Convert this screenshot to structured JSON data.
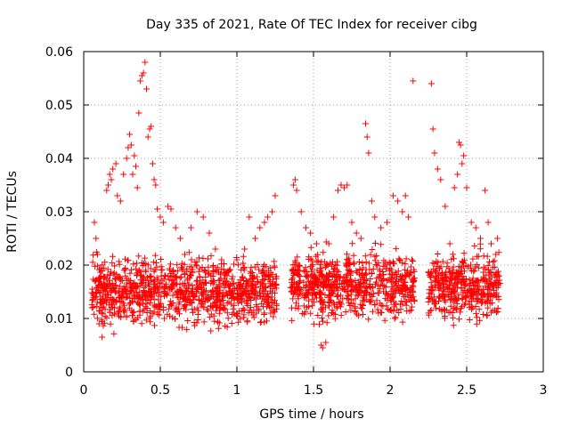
{
  "chart_data": {
    "type": "scatter",
    "title": "Day 335 of 2021, Rate Of TEC Index for receiver cibg",
    "xlabel": "GPS time / hours",
    "ylabel": "ROTI / TECUs",
    "xlim": [
      0,
      3
    ],
    "ylim": [
      0,
      0.06
    ],
    "xticks": [
      0,
      0.5,
      1,
      1.5,
      2,
      2.5,
      3
    ],
    "xtick_labels": [
      "0",
      "0.5",
      "1",
      "1.5",
      "2",
      "2.5",
      "3"
    ],
    "yticks": [
      0,
      0.01,
      0.02,
      0.03,
      0.04,
      0.05,
      0.06
    ],
    "ytick_labels": [
      "0",
      "0.01",
      "0.02",
      "0.03",
      "0.04",
      "0.05",
      "0.06"
    ],
    "grid": true,
    "marker": "+",
    "color": "#ff0000",
    "series": [
      {
        "name": "ROTI",
        "points": [
          [
            0.07,
            0.028
          ],
          [
            0.08,
            0.025
          ],
          [
            0.09,
            0.022
          ],
          [
            0.1,
            0.009
          ],
          [
            0.12,
            0.0065
          ],
          [
            0.13,
            0.016
          ],
          [
            0.15,
            0.034
          ],
          [
            0.16,
            0.035
          ],
          [
            0.17,
            0.037
          ],
          [
            0.18,
            0.036
          ],
          [
            0.19,
            0.038
          ],
          [
            0.21,
            0.039
          ],
          [
            0.22,
            0.033
          ],
          [
            0.24,
            0.032
          ],
          [
            0.26,
            0.037
          ],
          [
            0.28,
            0.04
          ],
          [
            0.29,
            0.042
          ],
          [
            0.3,
            0.0445
          ],
          [
            0.31,
            0.0425
          ],
          [
            0.32,
            0.037
          ],
          [
            0.33,
            0.0405
          ],
          [
            0.34,
            0.0385
          ],
          [
            0.35,
            0.0345
          ],
          [
            0.36,
            0.0485
          ],
          [
            0.37,
            0.0545
          ],
          [
            0.38,
            0.0555
          ],
          [
            0.39,
            0.056
          ],
          [
            0.4,
            0.058
          ],
          [
            0.41,
            0.053
          ],
          [
            0.42,
            0.044
          ],
          [
            0.43,
            0.0455
          ],
          [
            0.44,
            0.046
          ],
          [
            0.45,
            0.039
          ],
          [
            0.46,
            0.036
          ],
          [
            0.47,
            0.035
          ],
          [
            0.48,
            0.0305
          ],
          [
            0.5,
            0.029
          ],
          [
            0.52,
            0.028
          ],
          [
            0.55,
            0.031
          ],
          [
            0.57,
            0.0305
          ],
          [
            0.6,
            0.027
          ],
          [
            0.63,
            0.025
          ],
          [
            0.66,
            0.022
          ],
          [
            0.7,
            0.027
          ],
          [
            0.74,
            0.03
          ],
          [
            0.78,
            0.029
          ],
          [
            0.82,
            0.026
          ],
          [
            0.86,
            0.023
          ],
          [
            0.9,
            0.021
          ],
          [
            0.95,
            0.019
          ],
          [
            1.0,
            0.021
          ],
          [
            1.05,
            0.023
          ],
          [
            1.08,
            0.029
          ],
          [
            1.12,
            0.025
          ],
          [
            1.15,
            0.027
          ],
          [
            1.18,
            0.028
          ],
          [
            1.2,
            0.029
          ],
          [
            1.23,
            0.03
          ],
          [
            1.25,
            0.033
          ],
          [
            1.37,
            0.035
          ],
          [
            1.38,
            0.036
          ],
          [
            1.39,
            0.034
          ],
          [
            1.42,
            0.03
          ],
          [
            1.45,
            0.027
          ],
          [
            1.48,
            0.026
          ],
          [
            1.52,
            0.024
          ],
          [
            1.55,
            0.005
          ],
          [
            1.56,
            0.0045
          ],
          [
            1.58,
            0.0055
          ],
          [
            1.6,
            0.024
          ],
          [
            1.63,
            0.029
          ],
          [
            1.66,
            0.034
          ],
          [
            1.68,
            0.035
          ],
          [
            1.7,
            0.0345
          ],
          [
            1.72,
            0.035
          ],
          [
            1.75,
            0.028
          ],
          [
            1.78,
            0.026
          ],
          [
            1.81,
            0.025
          ],
          [
            1.84,
            0.0465
          ],
          [
            1.85,
            0.044
          ],
          [
            1.86,
            0.041
          ],
          [
            1.88,
            0.032
          ],
          [
            1.9,
            0.029
          ],
          [
            1.94,
            0.027
          ],
          [
            1.98,
            0.028
          ],
          [
            2.02,
            0.033
          ],
          [
            2.05,
            0.032
          ],
          [
            2.08,
            0.03
          ],
          [
            2.1,
            0.033
          ],
          [
            2.12,
            0.029
          ],
          [
            2.15,
            0.0545
          ],
          [
            2.27,
            0.054
          ],
          [
            2.28,
            0.0455
          ],
          [
            2.29,
            0.041
          ],
          [
            2.31,
            0.038
          ],
          [
            2.33,
            0.036
          ],
          [
            2.36,
            0.031
          ],
          [
            2.39,
            0.024
          ],
          [
            2.42,
            0.0345
          ],
          [
            2.44,
            0.037
          ],
          [
            2.45,
            0.043
          ],
          [
            2.46,
            0.0425
          ],
          [
            2.47,
            0.039
          ],
          [
            2.48,
            0.0405
          ],
          [
            2.5,
            0.0345
          ],
          [
            2.53,
            0.028
          ],
          [
            2.56,
            0.027
          ],
          [
            2.59,
            0.025
          ],
          [
            2.62,
            0.034
          ],
          [
            2.64,
            0.028
          ],
          [
            2.66,
            0.024
          ],
          [
            2.69,
            0.022
          ],
          [
            2.7,
            0.025
          ],
          [
            2.71,
            0.018
          ]
        ]
      }
    ],
    "dense_segments": [
      {
        "x_start": 0.05,
        "x_end": 1.26,
        "points": 1050,
        "y_center": 0.0152,
        "y_spread": 0.0042,
        "y_min": 0.006,
        "y_max": 0.028
      },
      {
        "x_start": 1.35,
        "x_end": 2.16,
        "points": 700,
        "y_center": 0.0162,
        "y_spread": 0.004,
        "y_min": 0.007,
        "y_max": 0.027
      },
      {
        "x_start": 2.25,
        "x_end": 2.72,
        "points": 430,
        "y_center": 0.016,
        "y_spread": 0.004,
        "y_min": 0.006,
        "y_max": 0.026
      }
    ]
  }
}
